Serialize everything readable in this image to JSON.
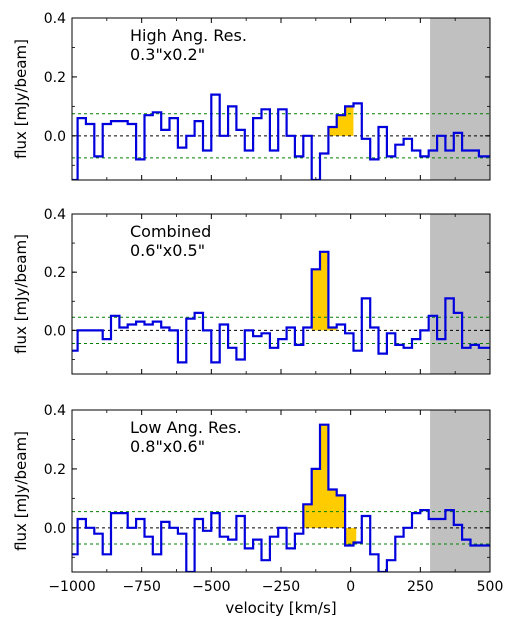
{
  "chart_data": [
    {
      "type": "line",
      "panel": "top",
      "title": "",
      "annotation_line1": "High Ang. Res.",
      "annotation_line2": "0.3\"x0.2\"",
      "xlabel": "",
      "ylabel": "flux  [mJy/beam]",
      "xlim": [
        -1000,
        500
      ],
      "ylim": [
        -0.15,
        0.4
      ],
      "yticks": [
        0.0,
        0.2,
        0.4
      ],
      "ytick_labels": [
        "0.0",
        "0.2",
        "0.4"
      ],
      "x_tick_labels_shown": false,
      "step_edges": [
        -1040,
        -1010,
        -980,
        -950,
        -920,
        -890,
        -860,
        -830,
        -800,
        -770,
        -740,
        -710,
        -680,
        -650,
        -620,
        -590,
        -560,
        -530,
        -500,
        -470,
        -440,
        -410,
        -380,
        -350,
        -320,
        -290,
        -260,
        -230,
        -200,
        -170,
        -140,
        -110,
        -80,
        -50,
        -20,
        10,
        40,
        70,
        100,
        130,
        160,
        190,
        220,
        250,
        280,
        310,
        340,
        370,
        400,
        430,
        460,
        490,
        520
      ],
      "series": [
        {
          "values": [
            -0.15,
            -0.15,
            0.06,
            0.04,
            -0.07,
            0.04,
            0.05,
            0.05,
            0.04,
            -0.08,
            0.07,
            0.08,
            0.02,
            0.06,
            -0.04,
            0.0,
            0.05,
            -0.05,
            0.14,
            0.0,
            0.1,
            0.02,
            -0.05,
            0.06,
            0.09,
            -0.05,
            0.09,
            0.0,
            -0.07,
            0.0,
            -0.15,
            -0.06,
            0.03,
            0.07,
            0.1,
            0.11,
            -0.01,
            -0.08,
            0.03,
            -0.07,
            -0.03,
            -0.01,
            -0.05,
            -0.07,
            -0.05,
            0.0,
            -0.05,
            0.01,
            -0.05,
            -0.05,
            -0.07,
            -0.07
          ]
        }
      ],
      "shaded_velocity_range": [
        -80,
        10
      ],
      "noise_levels": [
        0.075,
        -0.075
      ],
      "zero_line": 0.0,
      "excluded_region": [
        285,
        500
      ],
      "colors": {
        "line": "#0000dd",
        "fill": "#ffcc00",
        "noise": "#008000",
        "zero": "#000000",
        "excluded": "#c0c0c0"
      }
    },
    {
      "type": "line",
      "panel": "middle",
      "title": "",
      "annotation_line1": "Combined",
      "annotation_line2": "0.6\"x0.5\"",
      "xlabel": "",
      "ylabel": "flux  [mJy/beam]",
      "xlim": [
        -1000,
        500
      ],
      "ylim": [
        -0.15,
        0.4
      ],
      "yticks": [
        0.0,
        0.2,
        0.4
      ],
      "ytick_labels": [
        "0.0",
        "0.2",
        "0.4"
      ],
      "x_tick_labels_shown": false,
      "step_edges": [
        -1040,
        -1010,
        -980,
        -950,
        -920,
        -890,
        -860,
        -830,
        -800,
        -770,
        -740,
        -710,
        -680,
        -650,
        -620,
        -590,
        -560,
        -530,
        -500,
        -470,
        -440,
        -410,
        -380,
        -350,
        -320,
        -290,
        -260,
        -230,
        -200,
        -170,
        -140,
        -110,
        -80,
        -50,
        -20,
        10,
        40,
        70,
        100,
        130,
        160,
        190,
        220,
        250,
        280,
        310,
        340,
        370,
        400,
        430,
        460,
        490,
        520
      ],
      "series": [
        {
          "values": [
            -0.03,
            -0.07,
            0.0,
            0.0,
            0.0,
            -0.03,
            0.05,
            0.01,
            0.02,
            0.03,
            0.02,
            0.03,
            0.01,
            0.0,
            -0.11,
            0.04,
            0.06,
            0.0,
            -0.11,
            0.02,
            -0.06,
            -0.1,
            0.0,
            -0.02,
            -0.01,
            -0.06,
            -0.03,
            0.01,
            -0.05,
            0.01,
            0.21,
            0.27,
            0.01,
            0.02,
            -0.01,
            -0.07,
            0.11,
            0.01,
            -0.08,
            -0.01,
            -0.05,
            -0.06,
            -0.03,
            0.0,
            0.05,
            -0.03,
            0.11,
            0.06,
            -0.06,
            -0.05,
            -0.06,
            -0.06
          ]
        }
      ],
      "shaded_velocity_range": [
        -140,
        -50
      ],
      "noise_levels": [
        0.045,
        -0.045
      ],
      "zero_line": 0.0,
      "excluded_region": [
        285,
        500
      ],
      "colors": {
        "line": "#0000dd",
        "fill": "#ffcc00",
        "noise": "#008000",
        "zero": "#000000",
        "excluded": "#c0c0c0"
      }
    },
    {
      "type": "line",
      "panel": "bottom",
      "title": "",
      "annotation_line1": "Low Ang. Res.",
      "annotation_line2": "0.8\"x0.6\"",
      "xlabel": "velocity [km/s]",
      "ylabel": "flux  [mJy/beam]",
      "xlim": [
        -1000,
        500
      ],
      "ylim": [
        -0.15,
        0.4
      ],
      "yticks": [
        0.0,
        0.2,
        0.4
      ],
      "ytick_labels": [
        "0.0",
        "0.2",
        "0.4"
      ],
      "xticks": [
        -1000,
        -750,
        -500,
        -250,
        0,
        250,
        500
      ],
      "xtick_labels": [
        "−1000",
        "−750",
        "−500",
        "−250",
        "0",
        "250",
        "500"
      ],
      "x_tick_labels_shown": true,
      "step_edges": [
        -1040,
        -1010,
        -980,
        -950,
        -920,
        -890,
        -860,
        -830,
        -800,
        -770,
        -740,
        -710,
        -680,
        -650,
        -620,
        -590,
        -560,
        -530,
        -500,
        -470,
        -440,
        -410,
        -380,
        -350,
        -320,
        -290,
        -260,
        -230,
        -200,
        -170,
        -140,
        -110,
        -80,
        -50,
        -20,
        10,
        40,
        70,
        100,
        130,
        160,
        190,
        220,
        250,
        280,
        310,
        340,
        370,
        400,
        430,
        460,
        490,
        520
      ],
      "series": [
        {
          "values": [
            -0.08,
            -0.09,
            0.03,
            0.0,
            -0.02,
            -0.09,
            0.05,
            0.05,
            0.0,
            0.03,
            -0.03,
            -0.09,
            0.02,
            0.0,
            -0.02,
            -0.15,
            0.03,
            -0.01,
            0.05,
            -0.03,
            -0.04,
            0.04,
            -0.07,
            -0.04,
            -0.11,
            -0.03,
            0.0,
            -0.07,
            -0.02,
            0.08,
            0.2,
            0.35,
            0.13,
            0.11,
            -0.06,
            -0.05,
            0.04,
            -0.09,
            -0.15,
            -0.11,
            -0.03,
            0.0,
            0.05,
            0.06,
            0.03,
            0.03,
            0.06,
            0.01,
            -0.04,
            -0.06,
            -0.06,
            -0.06
          ]
        }
      ],
      "shaded_velocity_range": [
        -170,
        20
      ],
      "noise_levels": [
        0.055,
        -0.055
      ],
      "zero_line": 0.0,
      "excluded_region": [
        285,
        500
      ],
      "colors": {
        "line": "#0000dd",
        "fill": "#ffcc00",
        "noise": "#008000",
        "zero": "#000000",
        "excluded": "#c0c0c0"
      }
    }
  ]
}
